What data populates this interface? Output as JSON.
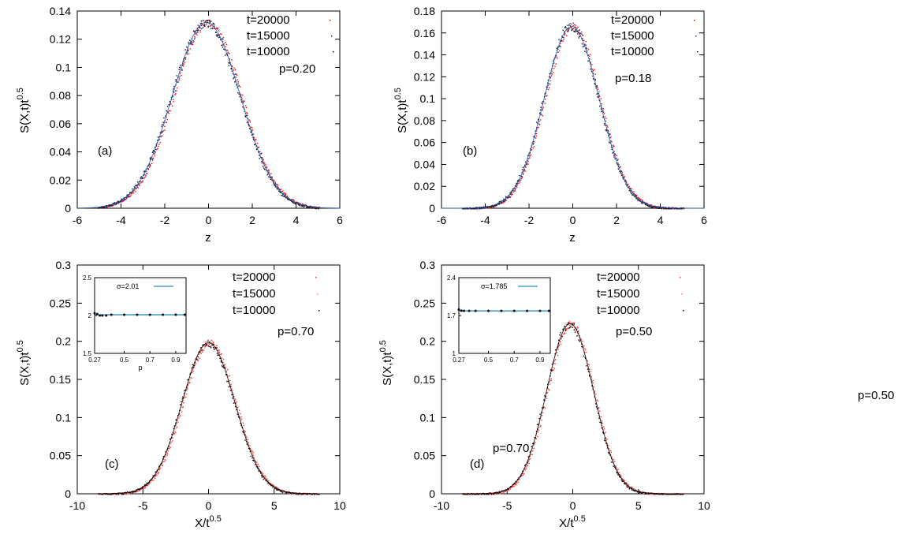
{
  "stray_label": "p=0.50",
  "chart_data": [
    {
      "id": "a",
      "type": "scatter",
      "panel_label": "(a)",
      "param_label": "p=0.20",
      "xlabel": "z",
      "ylabel": "S(X,t)t",
      "ylabel_exp": "0.5",
      "xlim": [
        -6,
        6
      ],
      "ylim": [
        0,
        0.14
      ],
      "xticks": [
        -6,
        -4,
        -2,
        0,
        2,
        4,
        6
      ],
      "xtick_labels": [
        "-6",
        "-4",
        "-2",
        "0",
        "2",
        "4",
        "6"
      ],
      "yticks": [
        0,
        0.02,
        0.04,
        0.06,
        0.08,
        0.1,
        0.12,
        0.14
      ],
      "ytick_labels": [
        "0",
        "0.02",
        "0.04",
        "0.06",
        "0.08",
        "0.1",
        "0.12",
        "0.14"
      ],
      "curve": {
        "peak": 0.132,
        "center": -0.1,
        "sigma": 1.55
      },
      "series": [
        {
          "name": "t=20000",
          "color": "#ff0000"
        },
        {
          "name": "t=15000",
          "color": "#1f3fa0"
        },
        {
          "name": "t=10000",
          "color": "#111111"
        }
      ]
    },
    {
      "id": "b",
      "type": "scatter",
      "panel_label": "(b)",
      "param_label": "p=0.18",
      "xlabel": "z",
      "ylabel": "S(X,t)t",
      "ylabel_exp": "0.5",
      "xlim": [
        -6,
        6
      ],
      "ylim": [
        0,
        0.18
      ],
      "xticks": [
        -6,
        -4,
        -2,
        0,
        2,
        4,
        6
      ],
      "xtick_labels": [
        "-6",
        "-4",
        "-2",
        "0",
        "2",
        "4",
        "6"
      ],
      "yticks": [
        0,
        0.02,
        0.04,
        0.06,
        0.08,
        0.1,
        0.12,
        0.14,
        0.16,
        0.18
      ],
      "ytick_labels": [
        "0",
        "0.02",
        "0.04",
        "0.06",
        "0.08",
        "0.1",
        "0.12",
        "0.14",
        "0.16",
        "0.18"
      ],
      "curve": {
        "peak": 0.166,
        "center": -0.05,
        "sigma": 1.25
      },
      "series": [
        {
          "name": "t=20000",
          "color": "#ff0000"
        },
        {
          "name": "t=15000",
          "color": "#1f3fa0"
        },
        {
          "name": "t=10000",
          "color": "#111111"
        }
      ]
    },
    {
      "id": "c",
      "type": "scatter",
      "panel_label": "(c)",
      "param_label": "p=0.70",
      "xlabel": "X/t",
      "xlabel_exp": "0.5",
      "ylabel": "S(X,t)t",
      "ylabel_exp": "0.5",
      "xlim": [
        -10,
        10
      ],
      "ylim": [
        0,
        0.3
      ],
      "xticks": [
        -10,
        -5,
        0,
        5,
        10
      ],
      "xtick_labels": [
        "-10",
        "-5",
        "0",
        "5",
        "10"
      ],
      "yticks": [
        0,
        0.05,
        0.1,
        0.15,
        0.2,
        0.25,
        0.3
      ],
      "ytick_labels": [
        "0",
        "0.05",
        "0.1",
        "0.15",
        "0.2",
        "0.25",
        "0.3"
      ],
      "curve": {
        "peak": 0.198,
        "center": 0,
        "sigma": 2.01
      },
      "series": [
        {
          "name": "t=20000",
          "color": "#ff3030"
        },
        {
          "name": "t=15000",
          "color": "#ff8080"
        },
        {
          "name": "t=10000",
          "color": "#000000"
        }
      ],
      "inset": {
        "type": "line",
        "legend": "σ=2.01",
        "xlabel": "p",
        "xlim": [
          0.27,
          0.98
        ],
        "ylim": [
          1.5,
          2.5
        ],
        "xticks": [
          0.27,
          0.5,
          0.7,
          0.9
        ],
        "xtick_labels": [
          "0.27",
          "0.5",
          "0.7",
          "0.9"
        ],
        "yticks": [
          1.5,
          2,
          2.5
        ],
        "ytick_labels": [
          "1.5",
          "2",
          "2.5"
        ],
        "fit_value": 2.01,
        "points": {
          "x": [
            0.27,
            0.29,
            0.31,
            0.33,
            0.36,
            0.4,
            0.5,
            0.6,
            0.7,
            0.8,
            0.9,
            0.97
          ],
          "y": [
            2.03,
            2.02,
            2.0,
            2.0,
            2.0,
            2.01,
            2.01,
            2.01,
            2.01,
            2.01,
            2.01,
            2.01
          ]
        }
      }
    },
    {
      "id": "d",
      "type": "scatter",
      "panel_label": "(d)",
      "param_label": "p=0.50",
      "extra_label": "p=0.70",
      "xlabel": "X/t",
      "xlabel_exp": "0.5",
      "ylabel": "S(X,t)t",
      "ylabel_exp": "0.5",
      "xlim": [
        -10,
        10
      ],
      "ylim": [
        0,
        0.3
      ],
      "xticks": [
        -10,
        -5,
        0,
        5,
        10
      ],
      "xtick_labels": [
        "-10",
        "-5",
        "0",
        "5",
        "10"
      ],
      "yticks": [
        0,
        0.05,
        0.1,
        0.15,
        0.2,
        0.25,
        0.3
      ],
      "ytick_labels": [
        "0",
        "0.05",
        "0.1",
        "0.15",
        "0.2",
        "0.25",
        "0.3"
      ],
      "curve": {
        "peak": 0.223,
        "center": -0.2,
        "sigma": 1.785
      },
      "series": [
        {
          "name": "t=20000",
          "color": "#ff3030"
        },
        {
          "name": "t=15000",
          "color": "#ff8080"
        },
        {
          "name": "t=10000",
          "color": "#000000"
        }
      ],
      "inset": {
        "type": "line",
        "legend": "σ=1.785",
        "xlabel": "",
        "xlim": [
          0.27,
          0.98
        ],
        "ylim": [
          1,
          2.4
        ],
        "xticks": [
          0.27,
          0.5,
          0.7,
          0.9
        ],
        "xtick_labels": [
          "0.27",
          "0.5",
          "0.7",
          "0.9"
        ],
        "yticks": [
          1,
          1.7,
          2.4
        ],
        "ytick_labels": [
          "1",
          "1.7",
          "2.4"
        ],
        "fit_value": 1.785,
        "points": {
          "x": [
            0.27,
            0.29,
            0.31,
            0.35,
            0.4,
            0.5,
            0.6,
            0.7,
            0.8,
            0.9,
            0.97
          ],
          "y": [
            1.81,
            1.79,
            1.785,
            1.785,
            1.785,
            1.785,
            1.785,
            1.785,
            1.785,
            1.785,
            1.785
          ]
        }
      }
    }
  ]
}
